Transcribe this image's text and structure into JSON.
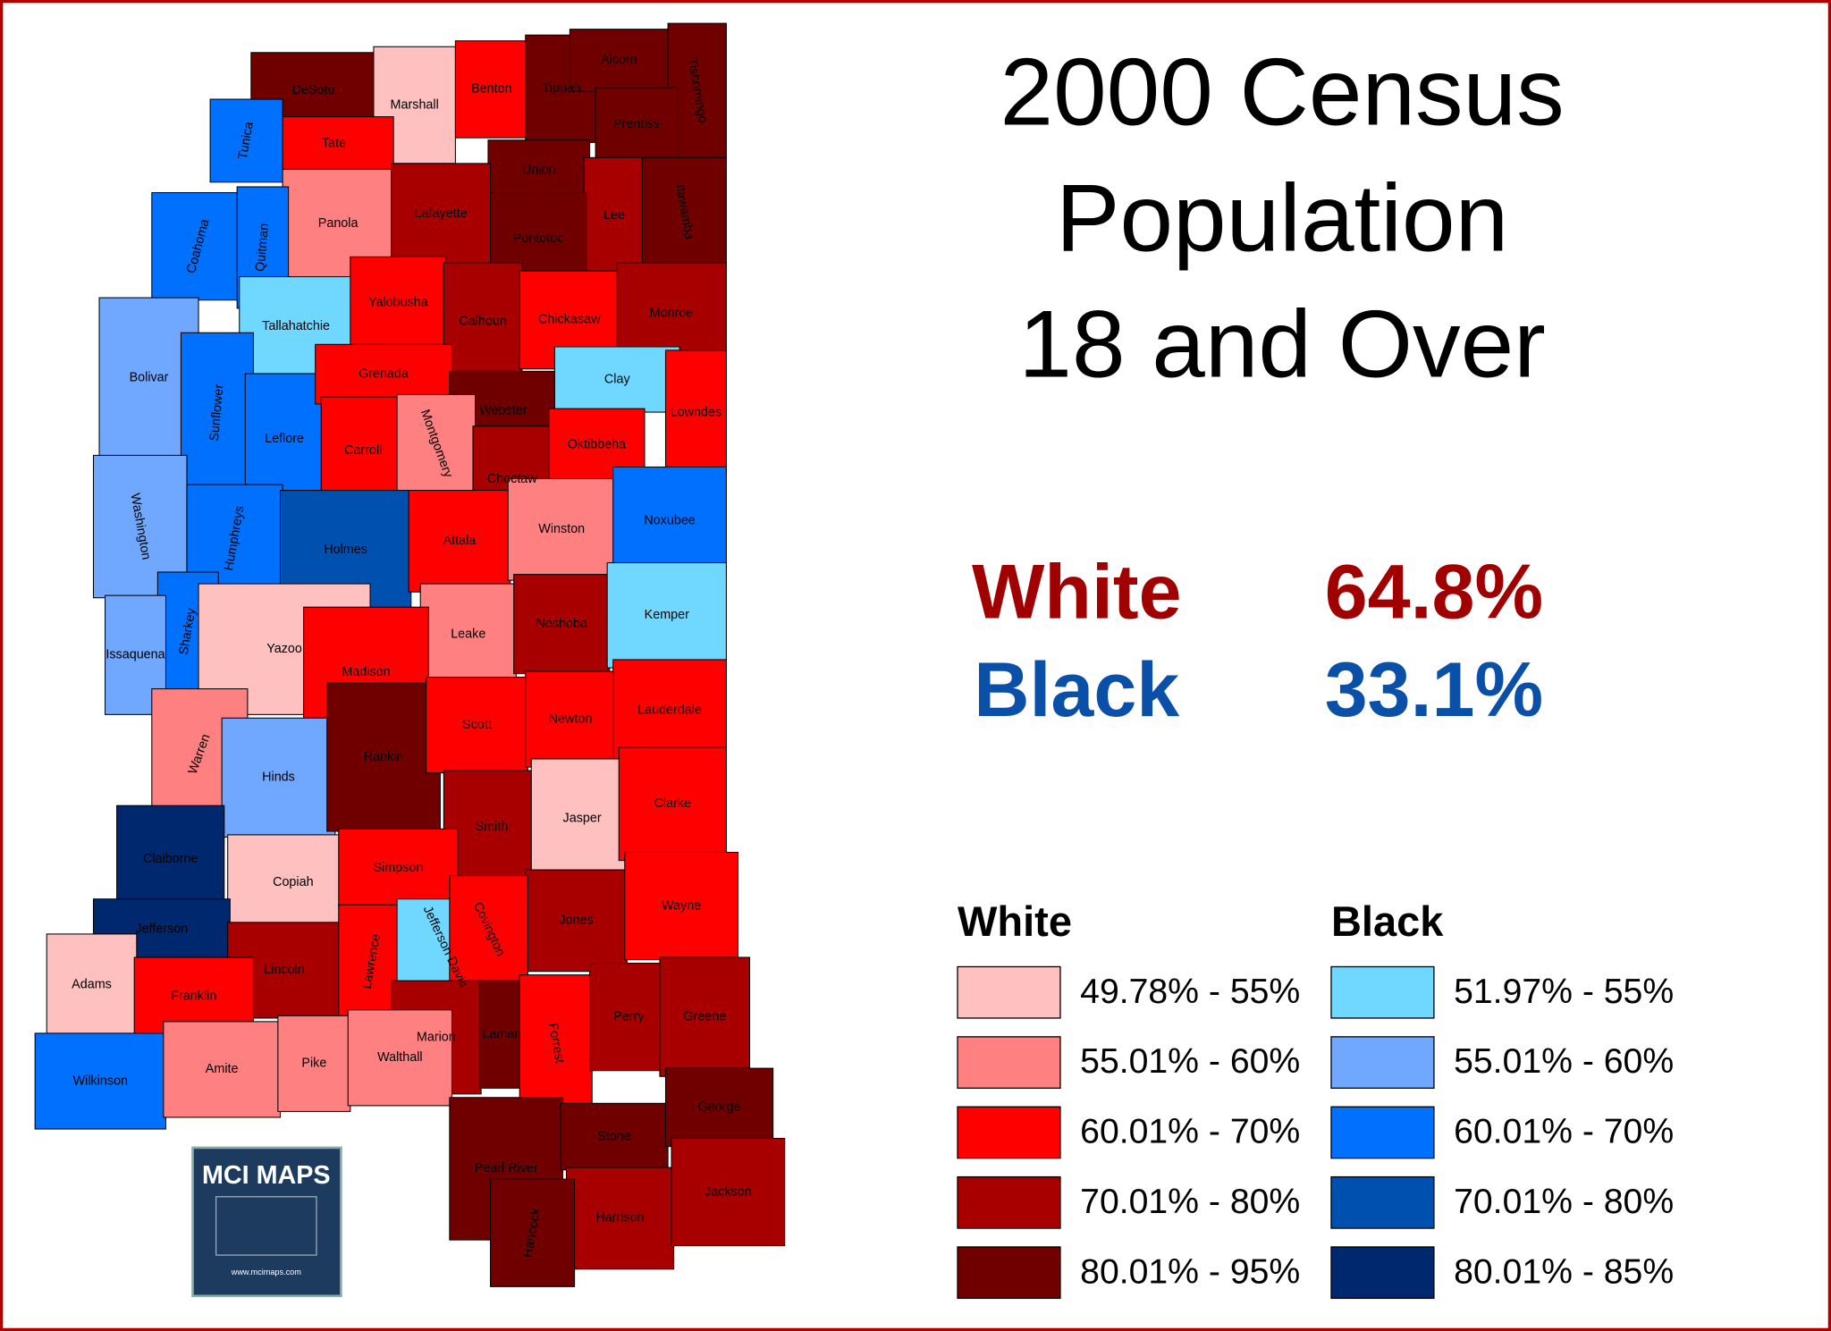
{
  "title_lines": [
    "2000 Census",
    "Population",
    "18 and Over"
  ],
  "stats": [
    {
      "label": "White",
      "value": "64.8%",
      "color": "#a00000"
    },
    {
      "label": "Black",
      "value": "33.1%",
      "color": "#0a4fa8"
    }
  ],
  "legend": [
    {
      "title": "White",
      "items": [
        {
          "label": "49.78% - 55%",
          "color": "#ffc0c0"
        },
        {
          "label": "55.01% - 60%",
          "color": "#ff8080"
        },
        {
          "label": "60.01% - 70%",
          "color": "#ff0000"
        },
        {
          "label": "70.01% - 80%",
          "color": "#a80000"
        },
        {
          "label": "80.01% - 95%",
          "color": "#700000"
        }
      ]
    },
    {
      "title": "Black",
      "items": [
        {
          "label": "51.97% - 55%",
          "color": "#70d8ff"
        },
        {
          "label": "55.01% - 60%",
          "color": "#70a8ff"
        },
        {
          "label": "60.01% - 70%",
          "color": "#0070ff"
        },
        {
          "label": "70.01% - 80%",
          "color": "#0050b0"
        },
        {
          "label": "80.01% - 85%",
          "color": "#00286e"
        }
      ]
    }
  ],
  "logo": {
    "title": "MCI MAPS",
    "url": "www.mcimaps.com"
  },
  "counties": [
    {
      "name": "DeSoto",
      "color": "#700000"
    },
    {
      "name": "Marshall",
      "color": "#ffc0c0"
    },
    {
      "name": "Benton",
      "color": "#ff0000"
    },
    {
      "name": "Tippah",
      "color": "#700000"
    },
    {
      "name": "Alcorn",
      "color": "#700000"
    },
    {
      "name": "Tishomingo",
      "color": "#700000"
    },
    {
      "name": "Prentiss",
      "color": "#700000"
    },
    {
      "name": "Tate",
      "color": "#ff0000"
    },
    {
      "name": "Tunica",
      "color": "#0070ff"
    },
    {
      "name": "Union",
      "color": "#700000"
    },
    {
      "name": "Lee",
      "color": "#a80000"
    },
    {
      "name": "Itawamba",
      "color": "#700000"
    },
    {
      "name": "Panola",
      "color": "#ff8080"
    },
    {
      "name": "Lafayette",
      "color": "#a80000"
    },
    {
      "name": "Pontotoc",
      "color": "#700000"
    },
    {
      "name": "Coahoma",
      "color": "#0070ff"
    },
    {
      "name": "Quitman",
      "color": "#0070ff"
    },
    {
      "name": "Tallahatchie",
      "color": "#70d8ff"
    },
    {
      "name": "Yalobusha",
      "color": "#ff0000"
    },
    {
      "name": "Calhoun",
      "color": "#a80000"
    },
    {
      "name": "Chickasaw",
      "color": "#ff0000"
    },
    {
      "name": "Monroe",
      "color": "#a80000"
    },
    {
      "name": "Bolivar",
      "color": "#70a8ff"
    },
    {
      "name": "Sunflower",
      "color": "#0070ff"
    },
    {
      "name": "Leflore",
      "color": "#0070ff"
    },
    {
      "name": "Grenada",
      "color": "#ff0000"
    },
    {
      "name": "Webster",
      "color": "#700000"
    },
    {
      "name": "Clay",
      "color": "#70d8ff"
    },
    {
      "name": "Lowndes",
      "color": "#ff0000"
    },
    {
      "name": "Carroll",
      "color": "#ff0000"
    },
    {
      "name": "Montgomery",
      "color": "#ff8080"
    },
    {
      "name": "Choctaw",
      "color": "#a80000"
    },
    {
      "name": "Oktibbeha",
      "color": "#ff0000"
    },
    {
      "name": "Washington",
      "color": "#70a8ff"
    },
    {
      "name": "Humphreys",
      "color": "#0070ff"
    },
    {
      "name": "Holmes",
      "color": "#0050b0"
    },
    {
      "name": "Attala",
      "color": "#ff0000"
    },
    {
      "name": "Winston",
      "color": "#ff8080"
    },
    {
      "name": "Noxubee",
      "color": "#0070ff"
    },
    {
      "name": "Sharkey",
      "color": "#0070ff"
    },
    {
      "name": "Issaquena",
      "color": "#70a8ff"
    },
    {
      "name": "Yazoo",
      "color": "#ffc0c0"
    },
    {
      "name": "Leake",
      "color": "#ff8080"
    },
    {
      "name": "Neshoba",
      "color": "#a80000"
    },
    {
      "name": "Kemper",
      "color": "#70d8ff"
    },
    {
      "name": "Madison",
      "color": "#ff0000"
    },
    {
      "name": "Warren",
      "color": "#ff8080"
    },
    {
      "name": "Hinds",
      "color": "#70a8ff"
    },
    {
      "name": "Rankin",
      "color": "#700000"
    },
    {
      "name": "Scott",
      "color": "#ff0000"
    },
    {
      "name": "Newton",
      "color": "#ff0000"
    },
    {
      "name": "Lauderdale",
      "color": "#ff0000"
    },
    {
      "name": "Smith",
      "color": "#a80000"
    },
    {
      "name": "Jasper",
      "color": "#ffc0c0"
    },
    {
      "name": "Clarke",
      "color": "#ff0000"
    },
    {
      "name": "Claiborne",
      "color": "#00286e"
    },
    {
      "name": "Copiah",
      "color": "#ffc0c0"
    },
    {
      "name": "Simpson",
      "color": "#ff0000"
    },
    {
      "name": "Jefferson",
      "color": "#00286e"
    },
    {
      "name": "Jones",
      "color": "#a80000"
    },
    {
      "name": "Wayne",
      "color": "#ff0000"
    },
    {
      "name": "Lincoln",
      "color": "#a80000"
    },
    {
      "name": "Lawrence",
      "color": "#ff0000"
    },
    {
      "name": "Jefferson Davis",
      "color": "#70d8ff"
    },
    {
      "name": "Covington",
      "color": "#ff0000"
    },
    {
      "name": "Adams",
      "color": "#ffc0c0"
    },
    {
      "name": "Franklin",
      "color": "#ff0000"
    },
    {
      "name": "Marion",
      "color": "#a80000"
    },
    {
      "name": "Lamar",
      "color": "#700000"
    },
    {
      "name": "Forrest",
      "color": "#ff0000"
    },
    {
      "name": "Perry",
      "color": "#a80000"
    },
    {
      "name": "Greene",
      "color": "#a80000"
    },
    {
      "name": "Wilkinson",
      "color": "#0070ff"
    },
    {
      "name": "Amite",
      "color": "#ff8080"
    },
    {
      "name": "Pike",
      "color": "#ff8080"
    },
    {
      "name": "Walthall",
      "color": "#ff8080"
    },
    {
      "name": "Pearl River",
      "color": "#700000"
    },
    {
      "name": "Stone",
      "color": "#700000"
    },
    {
      "name": "George",
      "color": "#700000"
    },
    {
      "name": "Harrison",
      "color": "#a80000"
    },
    {
      "name": "Jackson",
      "color": "#a80000"
    },
    {
      "name": "Hancock",
      "color": "#700000"
    }
  ]
}
